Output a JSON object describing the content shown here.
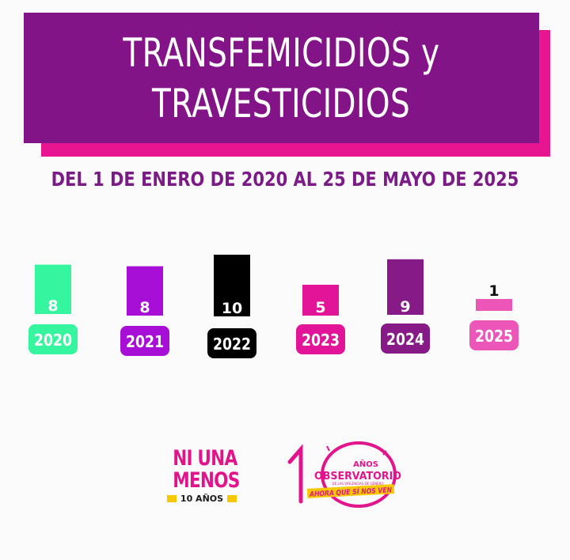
{
  "header": {
    "title_line1": "TRANSFEMICIDIOS y",
    "title_line2": "TRAVESTICIDIOS",
    "subtitle": "DEL 1 DE ENERO DE 2020 AL 25 DE MAYO DE 2025"
  },
  "chart_data": {
    "type": "bar",
    "categories": [
      "2020",
      "2021",
      "2022",
      "2023",
      "2024",
      "2025"
    ],
    "values": [
      8,
      8,
      10,
      5,
      9,
      1
    ],
    "colors": [
      "#35f59e",
      "#a80fd6",
      "#000000",
      "#e21497",
      "#861a86",
      "#eb56b8"
    ],
    "title": "",
    "xlabel": "",
    "ylabel": "",
    "ylim": [
      0,
      10
    ],
    "grid": false,
    "legend": "none"
  },
  "logos": {
    "ni_una_menos": {
      "line1": "NI UNA",
      "line2": "MENOS",
      "tag": "10 AÑOS"
    },
    "observatorio": {
      "number": "10",
      "anos": "AÑOS",
      "name": "OBSERVATORIO",
      "sub": "DE LAS VIOLENCIAS DE GÉNERO",
      "slogan": "AHORA QUE SÍ NOS VEN"
    }
  }
}
